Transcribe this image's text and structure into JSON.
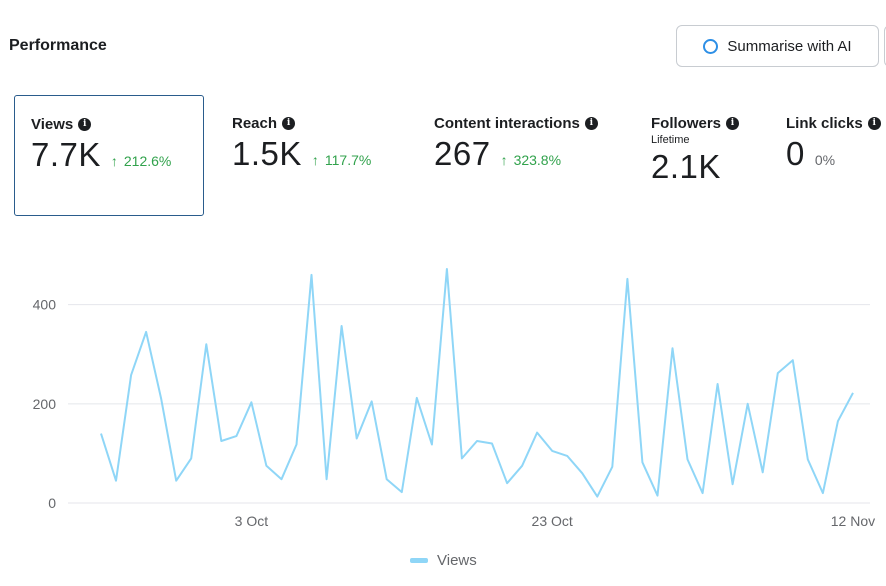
{
  "header": {
    "title": "Performance",
    "ai_button_label": "Summarise with AI"
  },
  "metrics": [
    {
      "label": "Views",
      "value": "7.7K",
      "change": "212.6%"
    },
    {
      "label": "Reach",
      "value": "1.5K",
      "change": "117.7%"
    },
    {
      "label": "Content interactions",
      "value": "267",
      "change": "323.8%"
    },
    {
      "label": "Followers",
      "sublabel": "Lifetime",
      "value": "2.1K"
    },
    {
      "label": "Link clicks",
      "value": "0",
      "change": "0%"
    }
  ],
  "colors": {
    "positive": "#31a24c",
    "line": "#8fd6f7",
    "selected_border": "#2a5c8c"
  },
  "chart_data": {
    "type": "line",
    "ylim": [
      0,
      480
    ],
    "yticks": [
      0,
      200,
      400
    ],
    "ytick_labels": [
      "0",
      "200",
      "400"
    ],
    "xlim": [
      0,
      51
    ],
    "xticks": [
      10,
      30,
      50
    ],
    "xtick_labels": [
      "3 Oct",
      "23 Oct",
      "12 Nov"
    ],
    "legend": [
      "Views"
    ],
    "series": [
      {
        "name": "Views",
        "values": [
          140,
          45,
          258,
          345,
          210,
          45,
          90,
          320,
          125,
          135,
          203,
          75,
          48,
          118,
          460,
          48,
          357,
          130,
          205,
          48,
          22,
          212,
          118,
          472,
          90,
          125,
          120,
          40,
          75,
          142,
          105,
          95,
          60,
          13,
          73,
          452,
          82,
          15,
          312,
          88,
          20,
          240,
          38,
          200,
          62,
          262,
          288,
          88,
          20,
          165,
          222
        ]
      }
    ]
  }
}
